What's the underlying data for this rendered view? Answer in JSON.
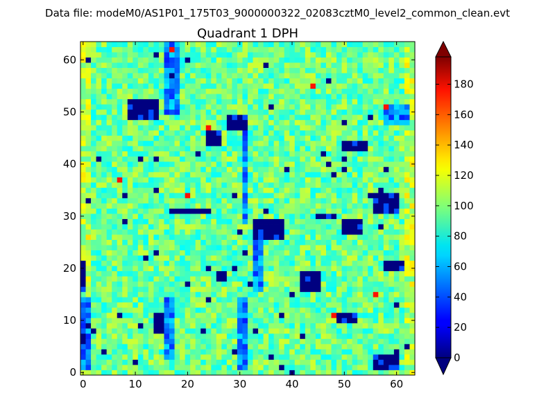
{
  "figure_title": "Data file: modeM0/AS1P01_175T03_9000000322_02083cztM0_level2_common_clean.evt",
  "chart_data": {
    "type": "heatmap",
    "title": "Quadrant 1 DPH",
    "xlabel": "",
    "ylabel": "",
    "xlim": [
      0,
      64
    ],
    "ylim": [
      0,
      64
    ],
    "grid": false,
    "x_ticks": [
      "0",
      "10",
      "20",
      "30",
      "40",
      "50",
      "60"
    ],
    "y_ticks": [
      "0",
      "10",
      "20",
      "30",
      "40",
      "50",
      "60"
    ],
    "x_tick_values": [
      0,
      10,
      20,
      30,
      40,
      50,
      60
    ],
    "y_tick_values": [
      0,
      10,
      20,
      30,
      40,
      50,
      60
    ],
    "colormap": "jet",
    "vmin": 0,
    "vmax": 198,
    "colorbar": {
      "ticks": [
        "0",
        "20",
        "40",
        "60",
        "80",
        "100",
        "120",
        "140",
        "160",
        "180"
      ],
      "tick_values": [
        0,
        20,
        40,
        60,
        80,
        100,
        120,
        140,
        160,
        180
      ],
      "extend": "both"
    },
    "grid_size": [
      64,
      64
    ],
    "background_level": 95,
    "noise_seed": 7,
    "dead_regions": [
      {
        "x": [
          9,
          15
        ],
        "y": [
          49,
          53
        ]
      },
      {
        "x": [
          24,
          27
        ],
        "y": [
          44,
          47
        ]
      },
      {
        "x": [
          28,
          32
        ],
        "y": [
          47,
          50
        ]
      },
      {
        "x": [
          50,
          55
        ],
        "y": [
          43,
          45
        ]
      },
      {
        "x": [
          56,
          61
        ],
        "y": [
          31,
          35
        ]
      },
      {
        "x": [
          33,
          39
        ],
        "y": [
          26,
          30
        ]
      },
      {
        "x": [
          45,
          49
        ],
        "y": [
          30,
          31
        ]
      },
      {
        "x": [
          50,
          54
        ],
        "y": [
          27,
          30
        ]
      },
      {
        "x": [
          42,
          46
        ],
        "y": [
          16,
          20
        ]
      },
      {
        "x": [
          26,
          28
        ],
        "y": [
          18,
          20
        ]
      },
      {
        "x": [
          0,
          1
        ],
        "y": [
          16,
          22
        ]
      },
      {
        "x": [
          14,
          16
        ],
        "y": [
          8,
          12
        ]
      },
      {
        "x": [
          49,
          53
        ],
        "y": [
          10,
          12
        ]
      },
      {
        "x": [
          56,
          61
        ],
        "y": [
          1,
          4
        ]
      },
      {
        "x": [
          17,
          25
        ],
        "y": [
          31,
          32
        ]
      },
      {
        "x": [
          58,
          62
        ],
        "y": [
          20,
          22
        ]
      }
    ],
    "low_strips": [
      {
        "x": [
          16,
          19
        ],
        "y": [
          50,
          64
        ]
      },
      {
        "x": [
          31,
          32
        ],
        "y": [
          29,
          48
        ]
      },
      {
        "x": [
          33,
          35
        ],
        "y": [
          16,
          30
        ]
      },
      {
        "x": [
          16,
          18
        ],
        "y": [
          3,
          15
        ]
      },
      {
        "x": [
          30,
          32
        ],
        "y": [
          1,
          15
        ]
      },
      {
        "x": [
          0,
          2
        ],
        "y": [
          1,
          15
        ]
      },
      {
        "x": [
          58,
          63
        ],
        "y": [
          48,
          52
        ]
      }
    ],
    "hot_spots": [
      {
        "x": 24,
        "y": 47
      },
      {
        "x": 17,
        "y": 62
      },
      {
        "x": 58,
        "y": 51
      },
      {
        "x": 48,
        "y": 11
      },
      {
        "x": 56,
        "y": 15
      },
      {
        "x": 7,
        "y": 37
      },
      {
        "x": 20,
        "y": 34
      },
      {
        "x": 44,
        "y": 55
      }
    ]
  }
}
